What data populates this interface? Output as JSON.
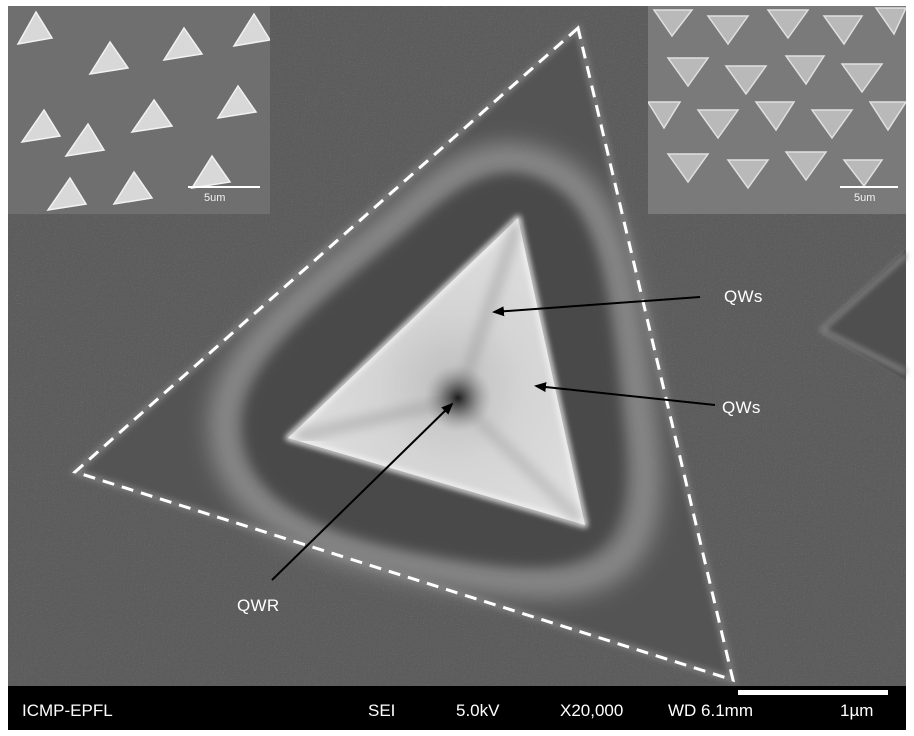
{
  "insets": {
    "left": {
      "scale_label": "5um"
    },
    "right": {
      "scale_label": "5um"
    }
  },
  "annotations": {
    "qws_upper": "QWs",
    "qws_lower": "QWs",
    "qwr": "QWR"
  },
  "info_bar": {
    "institution": "ICMP-EPFL",
    "detector": "SEI",
    "voltage": "5.0kV",
    "magnification": "X20,000",
    "working_distance": "WD 6.1mm",
    "scale": "1µm"
  },
  "colors": {
    "background": "#5e5e5e",
    "pyramid_core": "#d9d9d9",
    "dashed_outline": "#ffffff",
    "info_bar": "#000000"
  }
}
